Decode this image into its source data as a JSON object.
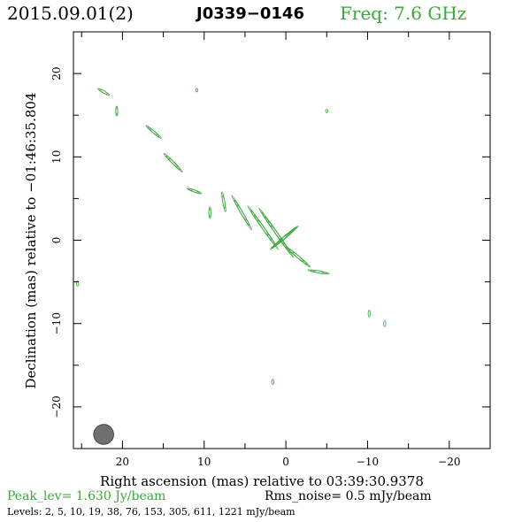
{
  "header": {
    "date": "2015.09.01(2)",
    "source": "J0339−0146",
    "freq": "Freq: 7.6 GHz"
  },
  "footer": {
    "peak": "Peak_lev=  1.630 Jy/beam",
    "rms": "Rms_noise=  0.5 mJy/beam",
    "levels": "Levels:   2,   5,  10,  19,  38,  76, 153, 305, 611, 1221 mJy/beam"
  },
  "colors": {
    "contour": "#3aa83a",
    "beam": "#707070",
    "axis": "#000000"
  },
  "chart_data": {
    "type": "contour",
    "xlabel": "Right ascension (mas) relative to 03:39:30.9378",
    "ylabel": "Declination (mas) relative to −01:46:35.804",
    "xlim": [
      26,
      -25
    ],
    "ylim": [
      -25,
      25
    ],
    "xticks": [
      20,
      10,
      0,
      -10,
      -20
    ],
    "yticks": [
      20,
      10,
      0,
      -10,
      -20
    ],
    "xtick_labels": [
      "20",
      "10",
      "0",
      "−10",
      "−20"
    ],
    "ytick_labels": [
      "20",
      "10",
      "0",
      "−10",
      "−20"
    ],
    "peak_jy_per_beam": 1.63,
    "rms_mjy_per_beam": 0.5,
    "levels_mjy_per_beam": [
      2,
      5,
      10,
      19,
      38,
      76,
      153,
      305,
      611,
      1221
    ],
    "beam": {
      "x": 22.3,
      "y": -23.3,
      "major_mas": 2.4,
      "minor_mas": 1.2,
      "pa_deg": -5
    },
    "blobs": [
      {
        "x": 0.2,
        "y": 0.3,
        "a": 2.4,
        "b": 2.2,
        "angle": 50,
        "level": 10
      },
      {
        "x": 1.2,
        "y": 0.9,
        "a": 6.6,
        "b": 3.6,
        "angle": -35,
        "level": 4
      },
      {
        "x": 2.8,
        "y": 1.5,
        "a": 5.5,
        "b": 3.2,
        "angle": -35,
        "level": 3
      },
      {
        "x": 5.4,
        "y": 3.3,
        "a": 3.1,
        "b": 2.4,
        "angle": -30,
        "level": 2
      },
      {
        "x": -1.5,
        "y": -2.0,
        "a": 3.0,
        "b": 1.9,
        "angle": -50,
        "level": 2
      },
      {
        "x": -4.0,
        "y": -3.8,
        "a": 3.7,
        "b": 1.3,
        "angle": -80,
        "level": 2
      },
      {
        "x": 7.6,
        "y": 4.6,
        "a": 2.6,
        "b": 1.2,
        "angle": -10,
        "level": 1
      },
      {
        "x": 9.3,
        "y": 3.3,
        "a": 1.0,
        "b": 0.7,
        "angle": 0,
        "level": 1
      },
      {
        "x": 11.2,
        "y": 5.9,
        "a": 1.5,
        "b": 0.9,
        "angle": -70,
        "level": 2
      },
      {
        "x": 13.8,
        "y": 9.3,
        "a": 2.8,
        "b": 1.6,
        "angle": -45,
        "level": 2
      },
      {
        "x": 16.2,
        "y": 13.0,
        "a": 1.8,
        "b": 1.2,
        "angle": -50,
        "level": 2
      },
      {
        "x": 20.7,
        "y": 15.5,
        "a": 0.8,
        "b": 0.6,
        "angle": 0,
        "level": 1
      },
      {
        "x": 22.3,
        "y": 17.8,
        "a": 1.2,
        "b": 0.8,
        "angle": -60,
        "level": 1
      },
      {
        "x": 10.9,
        "y": 18.0,
        "a": 0.3,
        "b": 0.2,
        "angle": 0,
        "level": 0
      },
      {
        "x": -5.0,
        "y": 15.5,
        "a": 0.3,
        "b": 0.2,
        "angle": 0,
        "level": 0
      },
      {
        "x": 25.5,
        "y": -5.2,
        "a": 0.4,
        "b": 0.3,
        "angle": 0,
        "level": 0
      },
      {
        "x": -10.2,
        "y": -8.8,
        "a": 0.5,
        "b": 0.4,
        "angle": 0,
        "level": 0
      },
      {
        "x": -12.1,
        "y": -10.0,
        "a": 0.45,
        "b": 0.35,
        "angle": 0,
        "level": 0
      },
      {
        "x": 1.6,
        "y": -17.0,
        "a": 0.4,
        "b": 0.3,
        "angle": 0,
        "level": 0
      }
    ]
  }
}
